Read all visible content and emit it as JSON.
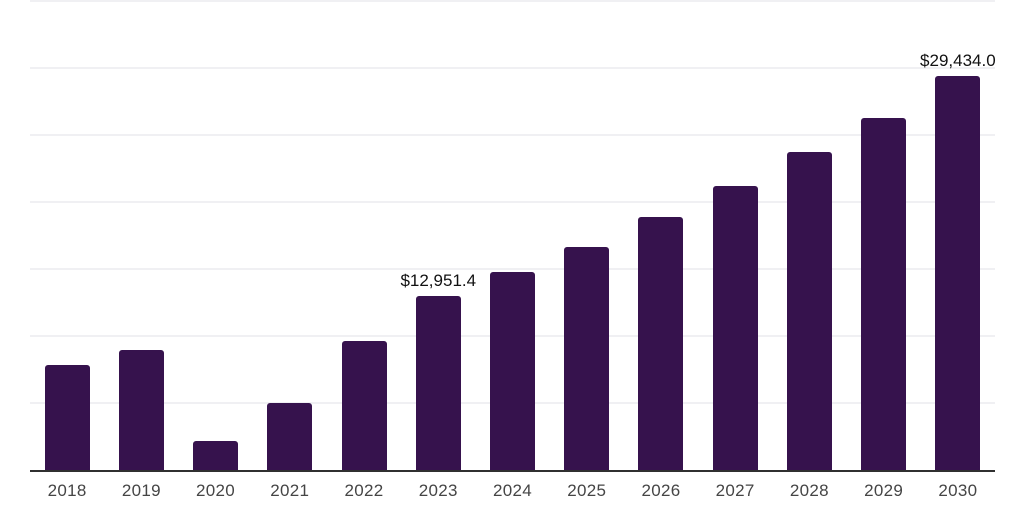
{
  "chart_data": {
    "type": "bar",
    "title": "",
    "xlabel": "",
    "ylabel": "",
    "categories": [
      "2018",
      "2019",
      "2020",
      "2021",
      "2022",
      "2023",
      "2024",
      "2025",
      "2026",
      "2027",
      "2028",
      "2029",
      "2030"
    ],
    "values": [
      7840,
      8950,
      2160,
      5000,
      9630,
      12951.4,
      14780,
      16640,
      18880,
      21190,
      23730,
      26270,
      29434.0
    ],
    "value_labels": [
      "",
      "",
      "",
      "",
      "",
      "$12,951.4",
      "",
      "",
      "",
      "",
      "",
      "",
      "$29,434.0"
    ],
    "ylim": [
      0,
      35000
    ],
    "gridline_interval": 5000,
    "grid": true,
    "legend": "none",
    "bar_color": "#36124d",
    "axis_color": "#303030",
    "gridline_color": "#f0f0f3",
    "tick_label_color": "#454545",
    "data_label_color": "#111111"
  }
}
